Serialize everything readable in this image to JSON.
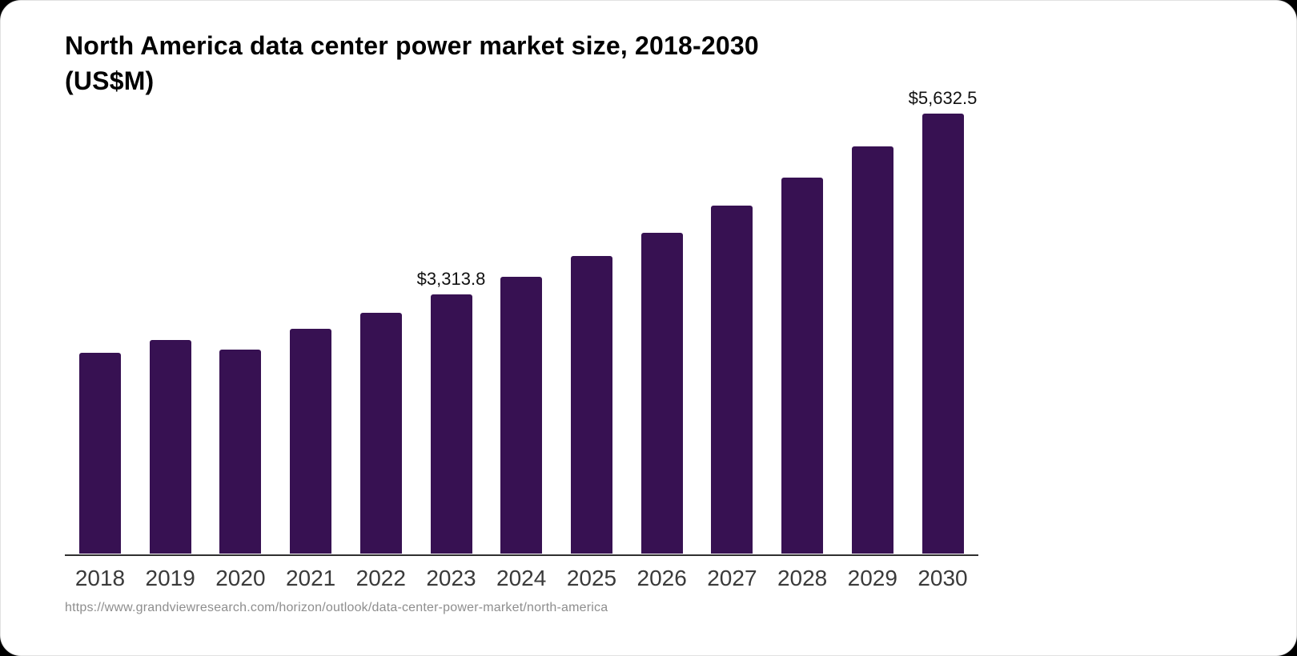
{
  "header": {
    "title_line1": "North America data center power market size, 2018-2030",
    "title_line2": "(US$M)"
  },
  "footer": {
    "source_url": "https://www.grandviewresearch.com/horizon/outlook/data-center-power-market/north-america"
  },
  "colors": {
    "page_background": "#000000",
    "card_background": "#ffffff",
    "title": "#000000",
    "bar": "#371152",
    "axis": "#2f2f2f",
    "tick_label": "#3a3a3a",
    "value_label": "#111111",
    "source": "#8e8e8e"
  },
  "chart_data": {
    "type": "bar",
    "title": "North America data center power market size, 2018-2030 (US$M)",
    "unit": "US$M",
    "categories": [
      "2018",
      "2019",
      "2020",
      "2021",
      "2022",
      "2023",
      "2024",
      "2025",
      "2026",
      "2027",
      "2028",
      "2029",
      "2030"
    ],
    "values": [
      2570,
      2730,
      2610,
      2880,
      3080,
      3313.8,
      3540,
      3810,
      4110,
      4450,
      4810,
      5210,
      5632.5
    ],
    "value_labels": {
      "2023": "$3,313.8",
      "2030": "$5,632.5"
    },
    "xlabel": "",
    "ylabel": "",
    "ylim": [
      0,
      5632.5
    ],
    "grid": false,
    "legend": false
  }
}
